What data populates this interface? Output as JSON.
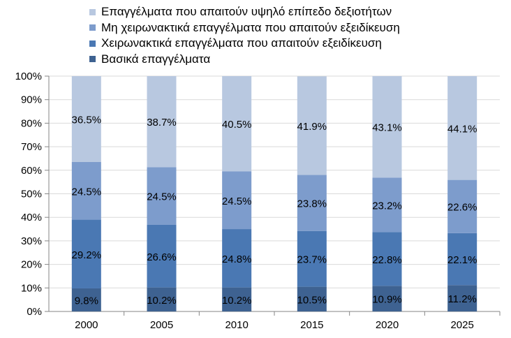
{
  "chart_data": {
    "type": "bar",
    "stacked": true,
    "percent": true,
    "categories": [
      "2000",
      "2005",
      "2010",
      "2015",
      "2020",
      "2025"
    ],
    "series": [
      {
        "name": "Βασικά επαγγέλματα",
        "color": "#3E6291",
        "values": [
          9.8,
          10.2,
          10.2,
          10.5,
          10.9,
          11.2
        ],
        "labels": [
          "9.8%",
          "10.2%",
          "10.2%",
          "10.5%",
          "10.9%",
          "11.2%"
        ]
      },
      {
        "name": "Χειρωνακτικά επαγγέλματα που απαιτούν εξειδίκευση",
        "color": "#4A78B3",
        "values": [
          29.2,
          26.6,
          24.8,
          23.7,
          22.8,
          22.1
        ],
        "labels": [
          "29.2%",
          "26.6%",
          "24.8%",
          "23.7%",
          "22.8%",
          "22.1%"
        ]
      },
      {
        "name": "Μη χειρωνακτικά επαγγέλματα που απαιτούν εξειδίκευση",
        "color": "#7D9CCC",
        "values": [
          24.5,
          24.5,
          24.5,
          23.8,
          23.2,
          22.6
        ],
        "labels": [
          "24.5%",
          "24.5%",
          "24.5%",
          "23.8%",
          "23.2%",
          "22.6%"
        ]
      },
      {
        "name": "Επαγγέλματα που απαιτούν υψηλό  επίπεδο δεξιοτήτων",
        "color": "#B8C8E0",
        "values": [
          36.5,
          38.7,
          40.5,
          41.9,
          43.1,
          44.1
        ],
        "labels": [
          "36.5%",
          "38.7%",
          "40.5%",
          "41.9%",
          "43.1%",
          "44.1%"
        ]
      }
    ],
    "ylim": [
      0,
      100
    ],
    "yticks": [
      "0%",
      "10%",
      "20%",
      "30%",
      "40%",
      "50%",
      "60%",
      "70%",
      "80%",
      "90%",
      "100%"
    ],
    "legend_position": "top"
  }
}
